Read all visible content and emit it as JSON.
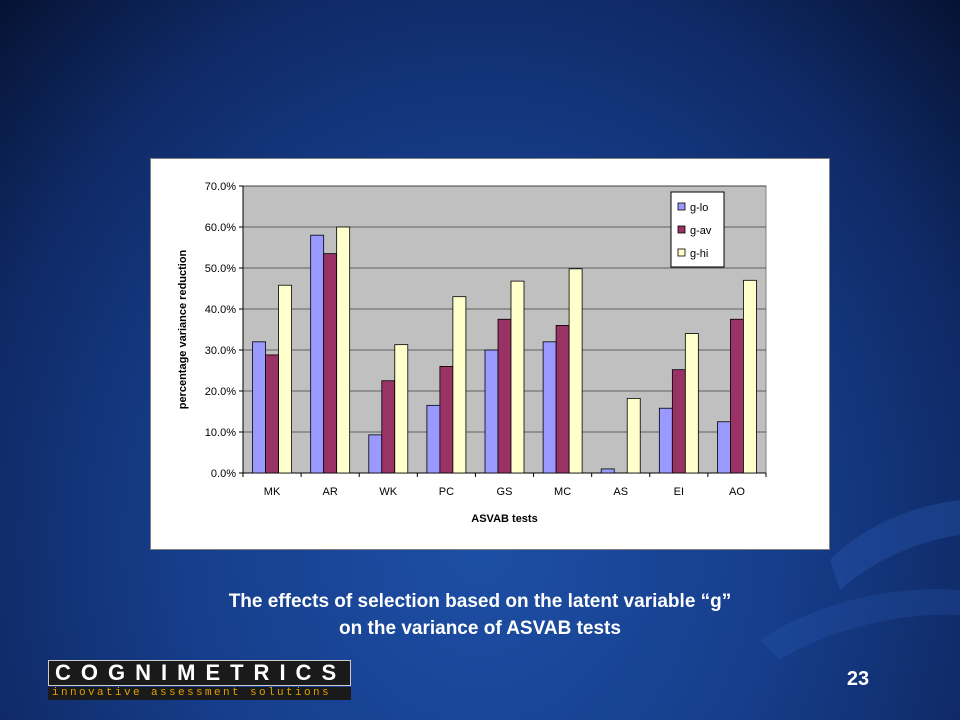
{
  "slide": {
    "caption_line1": "The effects of selection based on the latent variable “g”",
    "caption_line2": "on the variance of ASVAB tests",
    "page_number": "23",
    "logo_main": "COGNIMETRICS",
    "logo_sub": "innovative assessment solutions",
    "background_color": "#163d8a",
    "logo_accent": "#e0a000"
  },
  "chart_data": {
    "type": "bar",
    "title": "",
    "xlabel": "ASVAB tests",
    "ylabel": "percentage variance reduction",
    "categories": [
      "MK",
      "AR",
      "WK",
      "PC",
      "GS",
      "MC",
      "AS",
      "EI",
      "AO"
    ],
    "yticks": [
      "0.0%",
      "10.0%",
      "20.0%",
      "30.0%",
      "40.0%",
      "50.0%",
      "60.0%",
      "70.0%"
    ],
    "ylim": [
      0,
      70
    ],
    "grid": true,
    "legend_position": "top-right",
    "plot_background": "#c0c0c0",
    "series": [
      {
        "name": "g-lo",
        "color": "#9999ff",
        "values": [
          32.0,
          58.0,
          9.3,
          16.5,
          30.0,
          32.0,
          1.0,
          15.8,
          12.5
        ]
      },
      {
        "name": "g-av",
        "color": "#993366",
        "values": [
          28.8,
          53.5,
          22.5,
          26.0,
          37.5,
          36.0,
          0.0,
          25.2,
          37.5
        ]
      },
      {
        "name": "g-hi",
        "color": "#ffffcc",
        "values": [
          45.8,
          60.0,
          31.3,
          43.0,
          46.8,
          49.8,
          18.2,
          34.0,
          47.0
        ]
      }
    ]
  }
}
